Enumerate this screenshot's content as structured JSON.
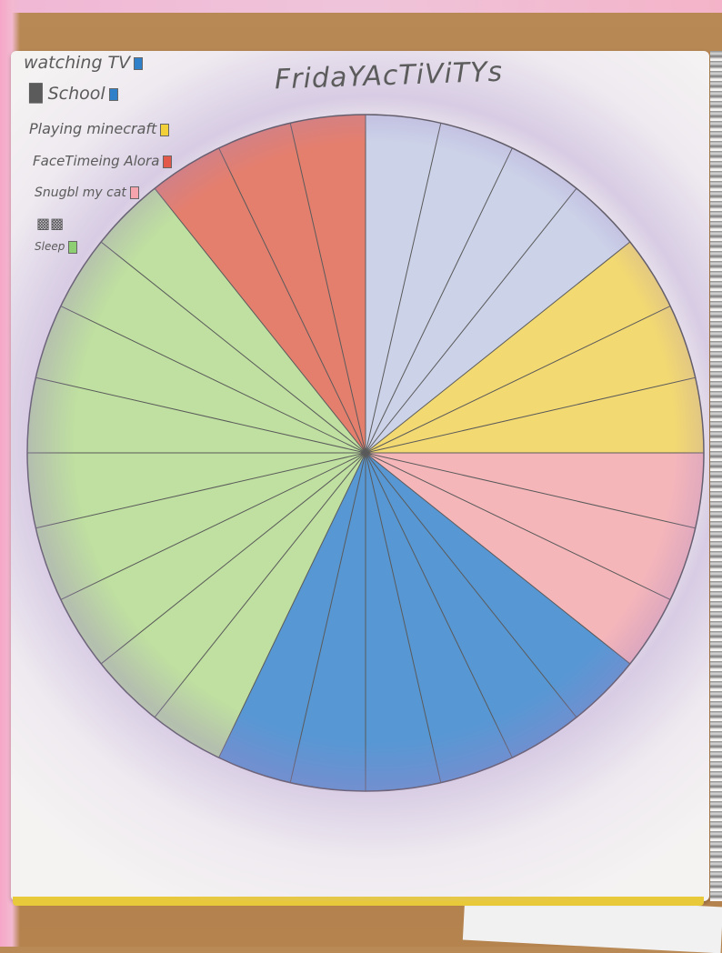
{
  "chart_data": {
    "type": "pie",
    "title": "FridaYAcTiViTYs",
    "legend": {
      "placement": "top-left",
      "entries": [
        {
          "label": "watching TV",
          "color": "#2f7fc9"
        },
        {
          "label": "School",
          "color": "#2f7fc9"
        },
        {
          "label": "Playing minecraft",
          "color": "#f2d03a"
        },
        {
          "label": "FaceTimeing Alora",
          "color": "#e2584a"
        },
        {
          "label": "Snugbl my cat",
          "color": "#f5a3ac"
        },
        {
          "label": "Sleep",
          "color": "#8fcf74"
        }
      ]
    },
    "slices": [
      {
        "label": "Alora",
        "value": 3,
        "color": "#e06a57"
      },
      {
        "label": "TV",
        "value": 4,
        "color": "#c4cbe6"
      },
      {
        "label": "Minecraft",
        "value": 3,
        "color": "#f2d35a"
      },
      {
        "label": "Cat",
        "value": 3,
        "color": "#f5aab0"
      },
      {
        "label": "School",
        "value": 6,
        "color": "#3b86cf"
      },
      {
        "label": "Sleep",
        "value": 9,
        "color": "#b5dc92"
      }
    ],
    "divisions": 28,
    "grid": false
  }
}
